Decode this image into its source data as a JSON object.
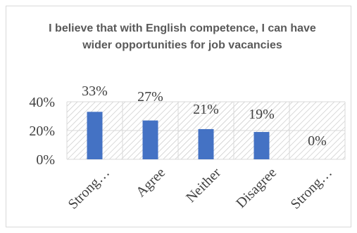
{
  "chart_data": {
    "type": "bar",
    "title": "I believe that with English competence, I can have wider opportunities for job vacancies",
    "categories": [
      "Strong…",
      "Agree",
      "Neither",
      "Disagree",
      "Strong…"
    ],
    "values": [
      33,
      27,
      21,
      19,
      0
    ],
    "data_labels": [
      "33%",
      "27%",
      "21%",
      "19%",
      "0%"
    ],
    "y_ticks": [
      "0%",
      "20%",
      "40%"
    ],
    "ylim": [
      0,
      40
    ],
    "grid": true,
    "legend": "none",
    "bar_color": "#4472C4",
    "plot_pattern": "diagonal-hatch"
  }
}
